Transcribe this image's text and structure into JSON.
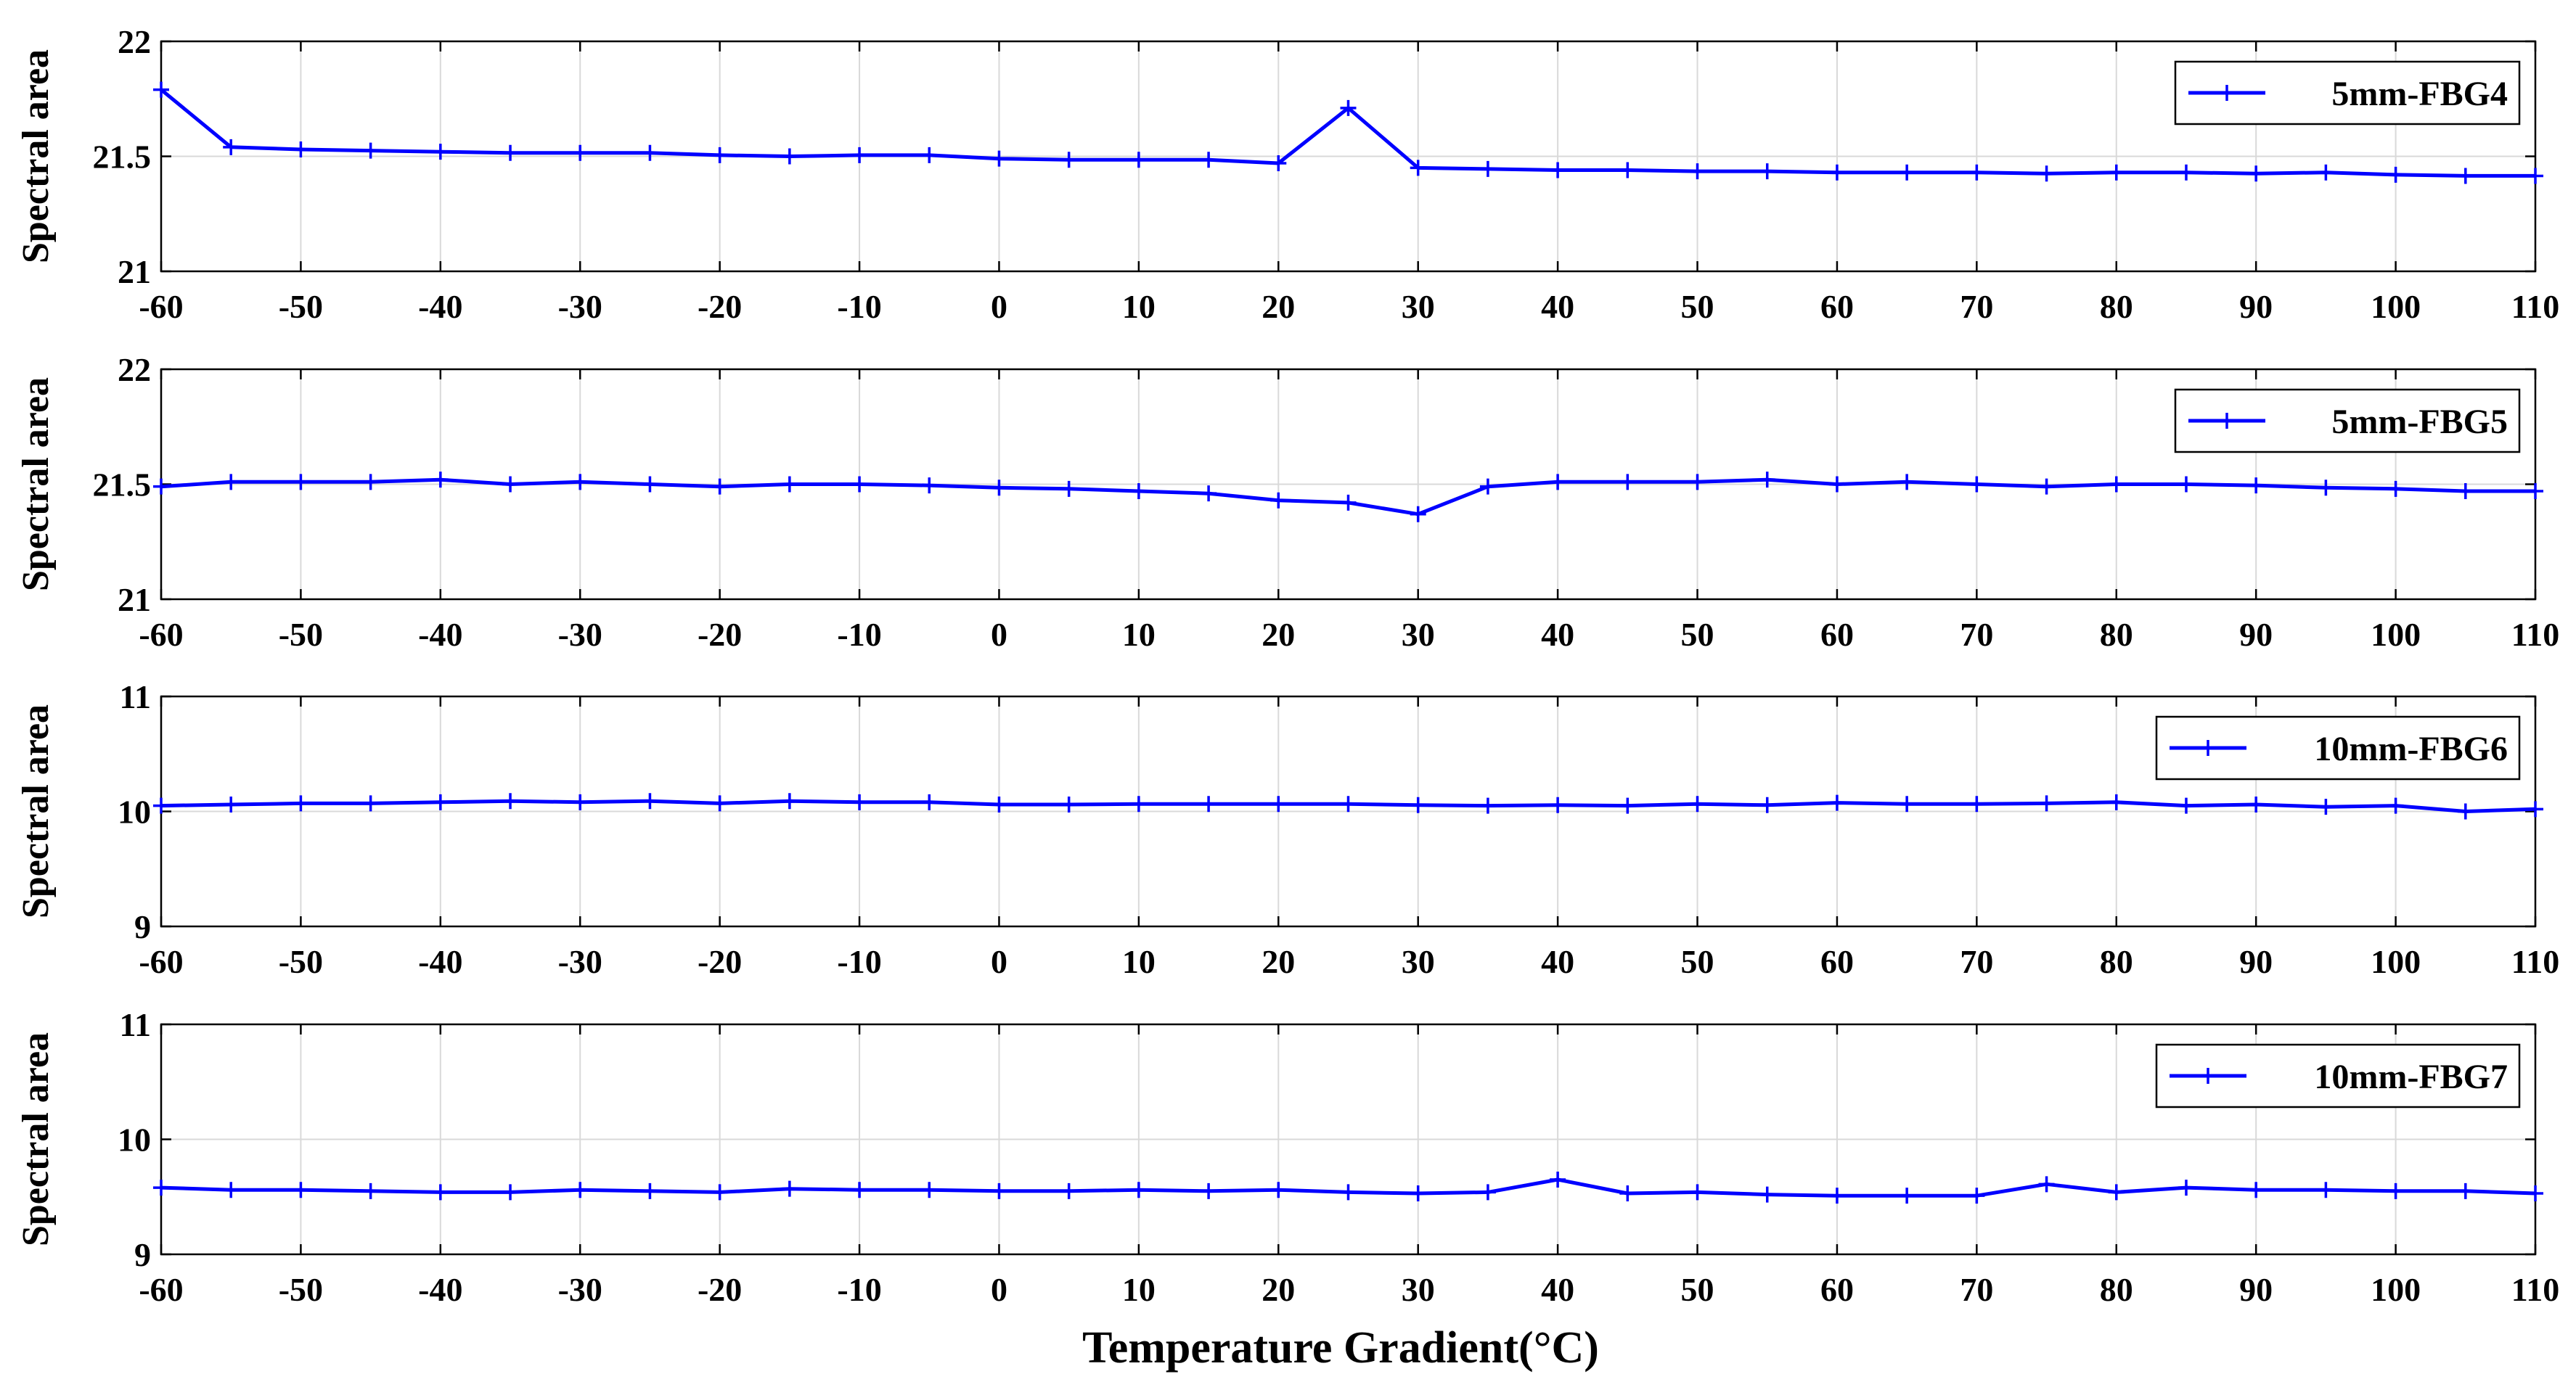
{
  "xlabel": "Temperature Gradient(°C)",
  "colors": {
    "series": "#0000ff",
    "grid": "#d9d9d9",
    "axis": "#000000"
  },
  "chart_data": [
    {
      "type": "line",
      "xlabel": "Temperature Gradient(°C)",
      "ylabel": "Spectral area",
      "xlim": [
        -60,
        110
      ],
      "ylim": [
        21,
        22
      ],
      "yticks": [
        "21",
        "21.5",
        "22"
      ],
      "xticks": [
        "-60",
        "-50",
        "-40",
        "-30",
        "-20",
        "-10",
        "0",
        "10",
        "20",
        "30",
        "40",
        "50",
        "60",
        "70",
        "80",
        "90",
        "100",
        "110"
      ],
      "grid": true,
      "legend_position": "top-right",
      "marker": "plus",
      "x": [
        -60,
        -55,
        -50,
        -45,
        -40,
        -35,
        -30,
        -25,
        -20,
        -15,
        -10,
        -5,
        0,
        5,
        10,
        15,
        20,
        25,
        30,
        35,
        40,
        45,
        50,
        55,
        60,
        65,
        70,
        75,
        80,
        85,
        90,
        95,
        100,
        105,
        110
      ],
      "series": [
        {
          "name": "5mm-FBG4",
          "values": [
            21.79,
            21.54,
            21.53,
            21.525,
            21.52,
            21.515,
            21.515,
            21.515,
            21.505,
            21.5,
            21.505,
            21.505,
            21.49,
            21.485,
            21.485,
            21.485,
            21.47,
            21.71,
            21.45,
            21.445,
            21.44,
            21.44,
            21.435,
            21.435,
            21.43,
            21.43,
            21.43,
            21.425,
            21.43,
            21.43,
            21.425,
            21.43,
            21.42,
            21.415,
            21.415
          ]
        }
      ]
    },
    {
      "type": "line",
      "xlabel": "Temperature Gradient(°C)",
      "ylabel": "Spectral area",
      "xlim": [
        -60,
        110
      ],
      "ylim": [
        21,
        22
      ],
      "yticks": [
        "21",
        "21.5",
        "22"
      ],
      "xticks": [
        "-60",
        "-50",
        "-40",
        "-30",
        "-20",
        "-10",
        "0",
        "10",
        "20",
        "30",
        "40",
        "50",
        "60",
        "70",
        "80",
        "90",
        "100",
        "110"
      ],
      "grid": true,
      "legend_position": "top-right",
      "marker": "plus",
      "x": [
        -60,
        -55,
        -50,
        -45,
        -40,
        -35,
        -30,
        -25,
        -20,
        -15,
        -10,
        -5,
        0,
        5,
        10,
        15,
        20,
        25,
        30,
        35,
        40,
        45,
        50,
        55,
        60,
        65,
        70,
        75,
        80,
        85,
        90,
        95,
        100,
        105,
        110
      ],
      "series": [
        {
          "name": "5mm-FBG5",
          "values": [
            21.49,
            21.51,
            21.51,
            21.51,
            21.52,
            21.5,
            21.51,
            21.5,
            21.49,
            21.5,
            21.5,
            21.495,
            21.485,
            21.48,
            21.47,
            21.46,
            21.43,
            21.42,
            21.37,
            21.49,
            21.51,
            21.51,
            21.51,
            21.52,
            21.5,
            21.51,
            21.5,
            21.49,
            21.5,
            21.5,
            21.495,
            21.485,
            21.48,
            21.47,
            21.47
          ]
        }
      ]
    },
    {
      "type": "line",
      "xlabel": "Temperature Gradient(°C)",
      "ylabel": "Spectral area",
      "xlim": [
        -60,
        110
      ],
      "ylim": [
        9,
        11
      ],
      "yticks": [
        "9",
        "10",
        "11"
      ],
      "xticks": [
        "-60",
        "-50",
        "-40",
        "-30",
        "-20",
        "-10",
        "0",
        "10",
        "20",
        "30",
        "40",
        "50",
        "60",
        "70",
        "80",
        "90",
        "100",
        "110"
      ],
      "grid": true,
      "legend_position": "top-right",
      "marker": "plus",
      "x": [
        -60,
        -55,
        -50,
        -45,
        -40,
        -35,
        -30,
        -25,
        -20,
        -15,
        -10,
        -5,
        0,
        5,
        10,
        15,
        20,
        25,
        30,
        35,
        40,
        45,
        50,
        55,
        60,
        65,
        70,
        75,
        80,
        85,
        90,
        95,
        100,
        105,
        110
      ],
      "series": [
        {
          "name": "10mm-FBG6",
          "values": [
            10.05,
            10.06,
            10.07,
            10.07,
            10.08,
            10.09,
            10.08,
            10.09,
            10.07,
            10.09,
            10.08,
            10.08,
            10.06,
            10.06,
            10.065,
            10.065,
            10.065,
            10.065,
            10.055,
            10.05,
            10.055,
            10.05,
            10.065,
            10.055,
            10.075,
            10.065,
            10.065,
            10.07,
            10.08,
            10.05,
            10.06,
            10.04,
            10.05,
            10.0,
            10.02
          ]
        }
      ]
    },
    {
      "type": "line",
      "xlabel": "Temperature Gradient(°C)",
      "ylabel": "Spectral area",
      "xlim": [
        -60,
        110
      ],
      "ylim": [
        9,
        11
      ],
      "yticks": [
        "9",
        "10",
        "11"
      ],
      "xticks": [
        "-60",
        "-50",
        "-40",
        "-30",
        "-20",
        "-10",
        "0",
        "10",
        "20",
        "30",
        "40",
        "50",
        "60",
        "70",
        "80",
        "90",
        "100",
        "110"
      ],
      "grid": true,
      "legend_position": "top-right",
      "marker": "plus",
      "x": [
        -60,
        -55,
        -50,
        -45,
        -40,
        -35,
        -30,
        -25,
        -20,
        -15,
        -10,
        -5,
        0,
        5,
        10,
        15,
        20,
        25,
        30,
        35,
        40,
        45,
        50,
        55,
        60,
        65,
        70,
        75,
        80,
        85,
        90,
        95,
        100,
        105,
        110
      ],
      "series": [
        {
          "name": "10mm-FBG7",
          "values": [
            9.58,
            9.56,
            9.56,
            9.55,
            9.54,
            9.54,
            9.56,
            9.55,
            9.54,
            9.57,
            9.56,
            9.56,
            9.55,
            9.55,
            9.56,
            9.55,
            9.56,
            9.54,
            9.53,
            9.54,
            9.65,
            9.53,
            9.54,
            9.52,
            9.51,
            9.51,
            9.51,
            9.61,
            9.54,
            9.58,
            9.56,
            9.56,
            9.55,
            9.55,
            9.53
          ]
        }
      ]
    }
  ]
}
